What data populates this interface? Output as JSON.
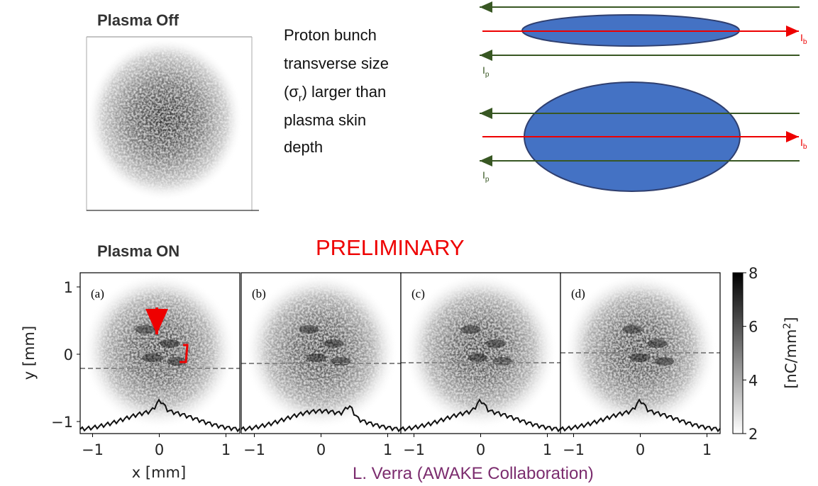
{
  "top": {
    "off_title": "Plasma Off",
    "description": {
      "lines_before": [
        "Proton bunch",
        "transverse size"
      ],
      "sigma_open": "(σ",
      "sigma_sub": "r",
      "sigma_rest": ") larger than",
      "lines_after": [
        "plasma skin",
        "depth"
      ]
    },
    "beam_label": {
      "symbol": "I",
      "sub": "b"
    },
    "plasma_label": {
      "symbol": "I",
      "sub": "p"
    }
  },
  "bottom": {
    "on_title": "Plasma ON",
    "stamp": "PRELIMINARY",
    "panels": [
      {
        "label": "(a)"
      },
      {
        "label": "(b)"
      },
      {
        "label": "(c)"
      },
      {
        "label": "(d)"
      }
    ],
    "x_ticks": [
      "−1",
      "0",
      "1"
    ],
    "y_ticks": [
      "1",
      "0",
      "−1"
    ],
    "x_label": "x [mm]",
    "y_label": "y [mm]",
    "colorbar_ticks": [
      "8",
      "6",
      "4",
      "2"
    ],
    "colorbar_label": {
      "open": "[nC/mm",
      "sup": "2",
      "close": "]"
    },
    "credit": "L. Verra  (AWAKE Collaboration)"
  }
}
